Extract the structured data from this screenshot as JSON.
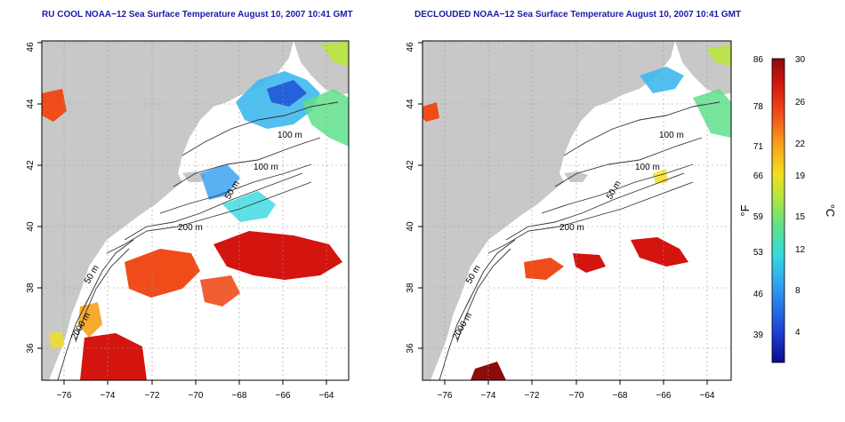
{
  "left_panel": {
    "title": "RU COOL NOAA−12 Sea Surface Temperature August 10, 2007 10:41 GMT"
  },
  "right_panel": {
    "title": "DECLOUDED NOAA−12 Sea Surface Temperature August 10, 2007 10:41 GMT"
  },
  "axes": {
    "lon_ticks": [
      "−76",
      "−74",
      "−72",
      "−70",
      "−68",
      "−66",
      "−64"
    ],
    "lat_ticks": [
      "36",
      "38",
      "40",
      "42",
      "44",
      "46"
    ]
  },
  "contours": {
    "labels": [
      "100 m",
      "100 m",
      "50 m",
      "200 m",
      "50 m",
      "2000 m"
    ]
  },
  "colorbar": {
    "unit_f": "°F",
    "unit_c": "°C",
    "f_ticks": [
      "86",
      "78",
      "71",
      "66",
      "59",
      "53",
      "46",
      "39"
    ],
    "c_ticks": [
      "30",
      "26",
      "22",
      "19",
      "15",
      "12",
      "8",
      "4"
    ],
    "colors": [
      "#0b0b8c",
      "#1f3fd6",
      "#2f9ef0",
      "#34d8e0",
      "#5fe08a",
      "#b8e63a",
      "#f2e01f",
      "#f7a01a",
      "#ef4c1a",
      "#d4140f",
      "#8c0c0c"
    ]
  },
  "colors": {
    "land": "#c8c8c8",
    "ocean": "#ffffff",
    "title": "#1a1aa6",
    "grid": "#9a9a9a"
  }
}
